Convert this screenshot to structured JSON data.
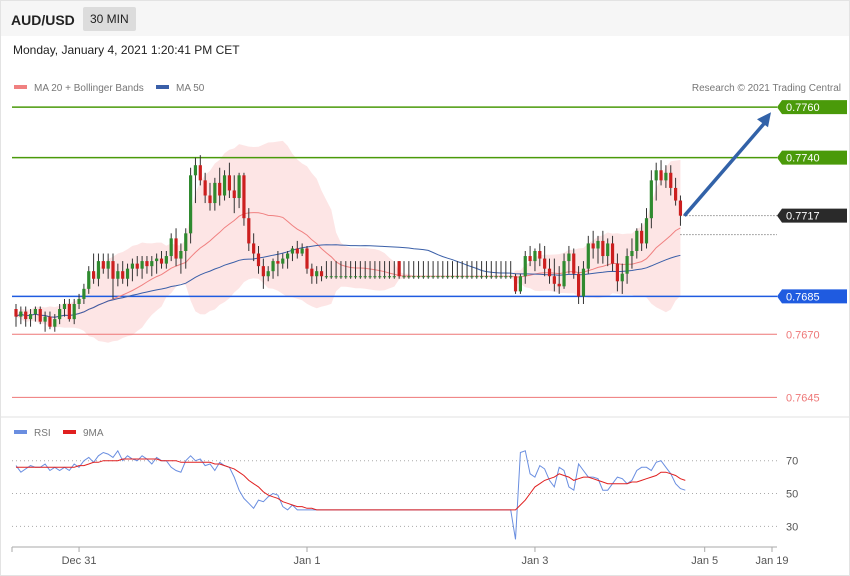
{
  "header": {
    "symbol": "AUD/USD",
    "timeframe": "30 MIN",
    "datetime": "Monday, January 4, 2021 1:20:41 PM CET"
  },
  "colors": {
    "ma20": "#f08080",
    "bands": "#fde0e0",
    "ma50": "#3a5fa8",
    "bull": "#2f8a2f",
    "bear": "#cc1f1f",
    "resistance": "#4a9a0a",
    "support": "#1f5be0",
    "target_low": "#ee7777",
    "rsi": "#6a8ee0",
    "rsi_ma": "#e02020"
  },
  "legend": {
    "ma20": "MA 20 + Bollinger Bands",
    "ma50": "MA 50",
    "credit": "Research © 2021 Trading Central",
    "rsi": "RSI",
    "rsi_ma": "9MA"
  },
  "chart_data": [
    {
      "type": "candlestick",
      "title": "AUD/USD 30 MIN",
      "ylim": [
        0.7638,
        0.7768
      ],
      "x_labels": [
        "Dec 31",
        "Jan 1",
        "Jan 3",
        "Jan 5",
        "Jan 19"
      ],
      "levels": [
        {
          "value": 0.776,
          "label": "0.7760",
          "kind": "resistance"
        },
        {
          "value": 0.774,
          "label": "0.7740",
          "kind": "resistance"
        },
        {
          "value": 0.7717,
          "label": "0.7717",
          "kind": "last"
        },
        {
          "value": 0.7685,
          "label": "0.7685",
          "kind": "pivot"
        },
        {
          "value": 0.767,
          "label": "0.7670",
          "kind": "target"
        },
        {
          "value": 0.7645,
          "label": "0.7645",
          "kind": "target"
        }
      ],
      "arrow": {
        "from": 0.7717,
        "to": 0.7758,
        "direction": "up"
      },
      "ohlc": [
        [
          0.768,
          0.7682,
          0.7673,
          0.7677
        ],
        [
          0.7677,
          0.7681,
          0.7674,
          0.7679
        ],
        [
          0.7679,
          0.7681,
          0.7673,
          0.7676
        ],
        [
          0.7676,
          0.768,
          0.7673,
          0.7678
        ],
        [
          0.7678,
          0.7681,
          0.7675,
          0.768
        ],
        [
          0.768,
          0.7681,
          0.7674,
          0.7675
        ],
        [
          0.7675,
          0.7679,
          0.7671,
          0.7677
        ],
        [
          0.7677,
          0.7679,
          0.7672,
          0.7673
        ],
        [
          0.7673,
          0.7678,
          0.7671,
          0.7676
        ],
        [
          0.7676,
          0.7682,
          0.7674,
          0.768
        ],
        [
          0.768,
          0.7684,
          0.7677,
          0.7682
        ],
        [
          0.7682,
          0.7684,
          0.7675,
          0.7676
        ],
        [
          0.7676,
          0.7684,
          0.7674,
          0.7682
        ],
        [
          0.7682,
          0.7686,
          0.768,
          0.7684
        ],
        [
          0.7684,
          0.769,
          0.7682,
          0.7688
        ],
        [
          0.7688,
          0.7697,
          0.7686,
          0.7695
        ],
        [
          0.7695,
          0.7702,
          0.769,
          0.7692
        ],
        [
          0.7692,
          0.7702,
          0.7689,
          0.7699
        ],
        [
          0.7699,
          0.7702,
          0.7694,
          0.7696
        ],
        [
          0.7696,
          0.7702,
          0.7692,
          0.7699
        ],
        [
          0.7699,
          0.7702,
          0.7684,
          0.7692
        ],
        [
          0.7692,
          0.7698,
          0.7689,
          0.7695
        ],
        [
          0.7695,
          0.7699,
          0.769,
          0.7692
        ],
        [
          0.7692,
          0.7698,
          0.7689,
          0.7696
        ],
        [
          0.7696,
          0.77,
          0.7691,
          0.7698
        ],
        [
          0.7698,
          0.7701,
          0.7693,
          0.7696
        ],
        [
          0.7696,
          0.7701,
          0.7692,
          0.7699
        ],
        [
          0.7699,
          0.7701,
          0.7694,
          0.7697
        ],
        [
          0.7697,
          0.7701,
          0.7693,
          0.7699
        ],
        [
          0.7699,
          0.7702,
          0.7694,
          0.77
        ],
        [
          0.77,
          0.7703,
          0.7696,
          0.7698
        ],
        [
          0.7698,
          0.7703,
          0.7696,
          0.7701
        ],
        [
          0.7701,
          0.771,
          0.7699,
          0.7708
        ],
        [
          0.7708,
          0.7712,
          0.7697,
          0.77
        ],
        [
          0.77,
          0.7706,
          0.7694,
          0.7703
        ],
        [
          0.7703,
          0.7712,
          0.7696,
          0.771
        ],
        [
          0.771,
          0.7736,
          0.7706,
          0.7733
        ],
        [
          0.7733,
          0.774,
          0.7722,
          0.7737
        ],
        [
          0.7737,
          0.7741,
          0.7729,
          0.7731
        ],
        [
          0.7731,
          0.7734,
          0.7722,
          0.7725
        ],
        [
          0.7725,
          0.773,
          0.7719,
          0.7722
        ],
        [
          0.7722,
          0.7732,
          0.7719,
          0.773
        ],
        [
          0.773,
          0.7736,
          0.7721,
          0.7725
        ],
        [
          0.7725,
          0.7735,
          0.7723,
          0.7733
        ],
        [
          0.7733,
          0.7738,
          0.7724,
          0.7727
        ],
        [
          0.7727,
          0.7733,
          0.7718,
          0.7724
        ],
        [
          0.7724,
          0.7734,
          0.772,
          0.7733
        ],
        [
          0.7733,
          0.7734,
          0.7713,
          0.7716
        ],
        [
          0.7716,
          0.772,
          0.7703,
          0.7706
        ],
        [
          0.7706,
          0.771,
          0.7699,
          0.7702
        ],
        [
          0.7702,
          0.7705,
          0.7694,
          0.7697
        ],
        [
          0.7697,
          0.77,
          0.7688,
          0.7693
        ],
        [
          0.7693,
          0.7697,
          0.7691,
          0.7695
        ],
        [
          0.7695,
          0.77,
          0.7692,
          0.7699
        ],
        [
          0.7699,
          0.7703,
          0.7693,
          0.7698
        ],
        [
          0.7698,
          0.7702,
          0.7696,
          0.77
        ],
        [
          0.77,
          0.7703,
          0.7696,
          0.7702
        ],
        [
          0.7702,
          0.7705,
          0.7699,
          0.7704
        ],
        [
          0.7704,
          0.7707,
          0.77,
          0.7702
        ],
        [
          0.7702,
          0.7706,
          0.7701,
          0.7704
        ],
        [
          0.7704,
          0.7705,
          0.7694,
          0.7696
        ],
        [
          0.7696,
          0.7698,
          0.769,
          0.7693
        ],
        [
          0.7693,
          0.7697,
          0.769,
          0.7695
        ],
        [
          0.7695,
          0.7697,
          0.7691,
          0.7693
        ],
        [
          0.7693,
          0.7699,
          0.7692,
          0.7693
        ],
        [
          0.7693,
          0.7699,
          0.7692,
          0.7693
        ],
        [
          0.7693,
          0.7699,
          0.7692,
          0.7693
        ],
        [
          0.7693,
          0.7699,
          0.7692,
          0.7693
        ],
        [
          0.7693,
          0.7699,
          0.7692,
          0.7693
        ],
        [
          0.7693,
          0.7699,
          0.7692,
          0.7693
        ],
        [
          0.7693,
          0.7699,
          0.7692,
          0.7693
        ],
        [
          0.7693,
          0.7699,
          0.7692,
          0.7693
        ],
        [
          0.7693,
          0.7699,
          0.7692,
          0.7693
        ],
        [
          0.7693,
          0.7699,
          0.7692,
          0.7693
        ],
        [
          0.7693,
          0.7699,
          0.7692,
          0.7693
        ],
        [
          0.7693,
          0.7699,
          0.7692,
          0.7693
        ],
        [
          0.7693,
          0.7699,
          0.7692,
          0.7693
        ],
        [
          0.7693,
          0.7699,
          0.7692,
          0.7693
        ],
        [
          0.7693,
          0.7699,
          0.7692,
          0.7693
        ],
        [
          0.7699,
          0.7699,
          0.7692,
          0.7693
        ],
        [
          0.7693,
          0.7699,
          0.7692,
          0.7693
        ],
        [
          0.7693,
          0.7699,
          0.7692,
          0.7693
        ],
        [
          0.7693,
          0.7699,
          0.7692,
          0.7693
        ],
        [
          0.7693,
          0.7699,
          0.7692,
          0.7693
        ],
        [
          0.7693,
          0.7699,
          0.7692,
          0.7693
        ],
        [
          0.7693,
          0.7699,
          0.7692,
          0.7693
        ],
        [
          0.7693,
          0.7699,
          0.7692,
          0.7693
        ],
        [
          0.7693,
          0.7699,
          0.7692,
          0.7693
        ],
        [
          0.7693,
          0.7699,
          0.7692,
          0.7693
        ],
        [
          0.7693,
          0.7699,
          0.7692,
          0.7693
        ],
        [
          0.7693,
          0.7699,
          0.7692,
          0.7693
        ],
        [
          0.7693,
          0.7699,
          0.7692,
          0.7693
        ],
        [
          0.7693,
          0.7699,
          0.7692,
          0.7693
        ],
        [
          0.7693,
          0.7699,
          0.7692,
          0.7693
        ],
        [
          0.7693,
          0.7699,
          0.7692,
          0.7693
        ],
        [
          0.7693,
          0.7699,
          0.7692,
          0.7693
        ],
        [
          0.7693,
          0.7699,
          0.7692,
          0.7693
        ],
        [
          0.7693,
          0.7699,
          0.7692,
          0.7693
        ],
        [
          0.7693,
          0.7699,
          0.7692,
          0.7693
        ],
        [
          0.7693,
          0.7699,
          0.7692,
          0.7693
        ],
        [
          0.7693,
          0.7699,
          0.7692,
          0.7693
        ],
        [
          0.7693,
          0.7699,
          0.7692,
          0.7693
        ],
        [
          0.7693,
          0.7699,
          0.7692,
          0.7693
        ],
        [
          0.7693,
          0.7694,
          0.7686,
          0.7687
        ],
        [
          0.7687,
          0.7694,
          0.7686,
          0.7693
        ],
        [
          0.7693,
          0.7703,
          0.769,
          0.7701
        ],
        [
          0.7701,
          0.7705,
          0.7697,
          0.7699
        ],
        [
          0.7699,
          0.7704,
          0.7695,
          0.7703
        ],
        [
          0.7703,
          0.7706,
          0.7697,
          0.77
        ],
        [
          0.77,
          0.7705,
          0.7693,
          0.7696
        ],
        [
          0.7696,
          0.77,
          0.769,
          0.7693
        ],
        [
          0.7693,
          0.77,
          0.7687,
          0.769
        ],
        [
          0.769,
          0.7697,
          0.7686,
          0.7689
        ],
        [
          0.7689,
          0.7702,
          0.7688,
          0.7699
        ],
        [
          0.7699,
          0.7705,
          0.7694,
          0.7702
        ],
        [
          0.7702,
          0.7704,
          0.7692,
          0.7694
        ],
        [
          0.7694,
          0.7697,
          0.7682,
          0.7685
        ],
        [
          0.7685,
          0.7699,
          0.7682,
          0.7696
        ],
        [
          0.7696,
          0.7709,
          0.7694,
          0.7706
        ],
        [
          0.7706,
          0.7711,
          0.77,
          0.7704
        ],
        [
          0.7704,
          0.7709,
          0.7698,
          0.7707
        ],
        [
          0.7707,
          0.7711,
          0.7698,
          0.7701
        ],
        [
          0.7701,
          0.7708,
          0.7697,
          0.7706
        ],
        [
          0.7706,
          0.7709,
          0.7695,
          0.7698
        ],
        [
          0.7698,
          0.7702,
          0.7687,
          0.7691
        ],
        [
          0.7691,
          0.7698,
          0.7686,
          0.7694
        ],
        [
          0.7694,
          0.7704,
          0.769,
          0.7701
        ],
        [
          0.7701,
          0.7708,
          0.7696,
          0.7703
        ],
        [
          0.7703,
          0.7712,
          0.77,
          0.7711
        ],
        [
          0.7711,
          0.7714,
          0.7703,
          0.7706
        ],
        [
          0.7706,
          0.772,
          0.7704,
          0.7716
        ],
        [
          0.7716,
          0.7735,
          0.7712,
          0.7731
        ],
        [
          0.7731,
          0.7738,
          0.7723,
          0.7735
        ],
        [
          0.7735,
          0.7739,
          0.7729,
          0.7731
        ],
        [
          0.7731,
          0.7737,
          0.7728,
          0.7734
        ],
        [
          0.7734,
          0.7737,
          0.7725,
          0.7728
        ],
        [
          0.7728,
          0.7732,
          0.7721,
          0.7723
        ],
        [
          0.7723,
          0.7725,
          0.7713,
          0.7717
        ]
      ]
    },
    {
      "type": "line",
      "title": "RSI",
      "ylim": [
        18,
        82
      ],
      "y_ticks": [
        70,
        50,
        30
      ],
      "series": [
        {
          "name": "RSI",
          "values": [
            67,
            63,
            65,
            67,
            66,
            66,
            68,
            64,
            66,
            64,
            66,
            64,
            68,
            66,
            70,
            72,
            69,
            73,
            75,
            74,
            72,
            76,
            70,
            73,
            71,
            70,
            73,
            71,
            68,
            72,
            70,
            70,
            66,
            64,
            63,
            70,
            73,
            70,
            71,
            67,
            68,
            64,
            69,
            67,
            66,
            60,
            52,
            47,
            44,
            41,
            46,
            45,
            48,
            50,
            49,
            42,
            40,
            43,
            40,
            40,
            40,
            40,
            40,
            40,
            40,
            40,
            40,
            40,
            40,
            40,
            40,
            40,
            40,
            40,
            40,
            40,
            40,
            40,
            40,
            40,
            40,
            40,
            40,
            40,
            40,
            40,
            40,
            40,
            40,
            40,
            40,
            40,
            40,
            40,
            40,
            40,
            40,
            40,
            40,
            40,
            40,
            40,
            40,
            22,
            75,
            76,
            62,
            60,
            67,
            65,
            58,
            54,
            66,
            64,
            54,
            52,
            68,
            64,
            60,
            60,
            59,
            52,
            52,
            56,
            60,
            59,
            56,
            58,
            64,
            66,
            66,
            64,
            69,
            70,
            66,
            62,
            56,
            53,
            52
          ]
        },
        {
          "name": "9MA",
          "values": [
            66,
            66,
            66,
            66,
            66,
            66,
            66,
            66,
            66,
            66,
            66,
            66,
            66,
            67,
            67,
            68,
            69,
            69,
            70,
            70,
            70,
            70,
            71,
            71,
            71,
            71,
            71,
            71,
            71,
            71,
            70,
            70,
            70,
            70,
            69,
            69,
            69,
            69,
            69,
            69,
            69,
            68,
            68,
            67,
            66,
            65,
            63,
            61,
            58,
            56,
            54,
            51,
            49,
            48,
            47,
            45,
            44,
            43,
            42,
            42,
            41,
            41,
            40,
            40,
            40,
            40,
            40,
            40,
            40,
            40,
            40,
            40,
            40,
            40,
            40,
            40,
            40,
            40,
            40,
            40,
            40,
            40,
            40,
            40,
            40,
            40,
            40,
            40,
            40,
            40,
            40,
            40,
            40,
            40,
            40,
            40,
            40,
            40,
            40,
            40,
            40,
            40,
            40,
            40,
            43,
            46,
            50,
            54,
            56,
            58,
            59,
            60,
            62,
            61,
            60,
            58,
            59,
            60,
            60,
            59,
            58,
            57,
            56,
            56,
            56,
            56,
            56,
            57,
            57,
            58,
            59,
            60,
            61,
            63,
            63,
            62,
            61,
            59,
            58
          ]
        }
      ]
    }
  ]
}
